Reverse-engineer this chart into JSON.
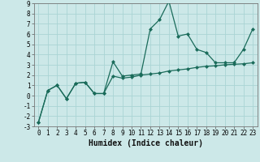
{
  "title": "",
  "xlabel": "Humidex (Indice chaleur)",
  "background_color": "#cce8e8",
  "line_color": "#1a6b5a",
  "x_values": [
    0,
    1,
    2,
    3,
    4,
    5,
    6,
    7,
    8,
    9,
    10,
    11,
    12,
    13,
    14,
    15,
    16,
    17,
    18,
    19,
    20,
    21,
    22,
    23
  ],
  "line1_y": [
    -2.6,
    0.5,
    1.0,
    -0.3,
    1.2,
    1.3,
    0.2,
    0.2,
    3.3,
    1.9,
    2.0,
    2.1,
    6.5,
    7.4,
    9.2,
    5.8,
    6.0,
    4.5,
    4.2,
    3.2,
    3.2,
    3.2,
    4.5,
    6.5
  ],
  "line2_y": [
    -2.6,
    0.5,
    1.0,
    -0.3,
    1.2,
    1.3,
    0.2,
    0.2,
    1.9,
    1.7,
    1.8,
    2.0,
    2.1,
    2.2,
    2.4,
    2.5,
    2.6,
    2.75,
    2.85,
    2.9,
    3.0,
    3.05,
    3.1,
    3.2
  ],
  "ylim": [
    -3,
    9
  ],
  "xlim": [
    -0.5,
    23.5
  ],
  "yticks": [
    -3,
    -2,
    -1,
    0,
    1,
    2,
    3,
    4,
    5,
    6,
    7,
    8,
    9
  ],
  "xticks": [
    0,
    1,
    2,
    3,
    4,
    5,
    6,
    7,
    8,
    9,
    10,
    11,
    12,
    13,
    14,
    15,
    16,
    17,
    18,
    19,
    20,
    21,
    22,
    23
  ],
  "grid_color": "#aad4d4",
  "marker": "D",
  "marker_size": 2.5,
  "linewidth": 0.9,
  "xlabel_fontsize": 7,
  "tick_fontsize": 5.5
}
